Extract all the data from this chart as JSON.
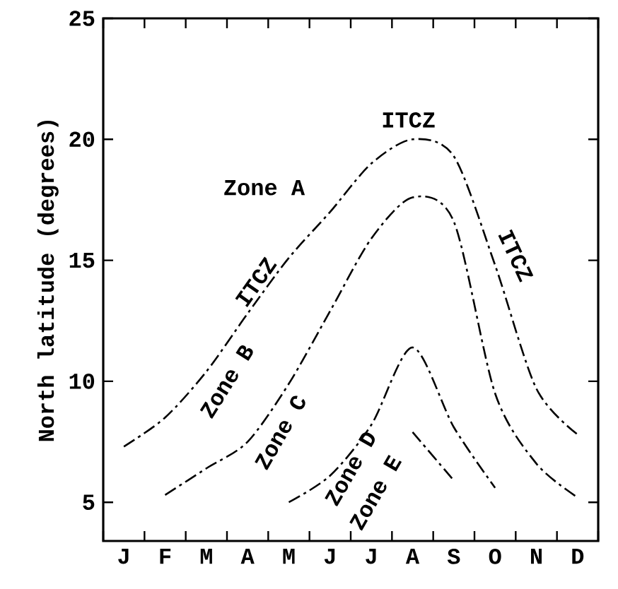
{
  "chart_data": {
    "type": "line",
    "ylabel": "North latitude (degrees)",
    "categories": [
      "J",
      "F",
      "M",
      "A",
      "M",
      "J",
      "J",
      "A",
      "S",
      "O",
      "N",
      "D"
    ],
    "ylim": [
      3.4,
      25
    ],
    "yticks": [
      5,
      10,
      15,
      20,
      25
    ],
    "grid": false,
    "marker": "none",
    "line_style": "dashed",
    "series": [
      {
        "color": "#000000",
        "values": [
          7.3,
          8.5,
          10.4,
          12.8,
          15.1,
          17.0,
          19.0,
          20.0,
          19.3,
          14.8,
          9.7,
          7.8
        ]
      },
      {
        "color": "#000000",
        "values": [
          null,
          5.3,
          6.4,
          7.5,
          9.9,
          12.9,
          15.9,
          17.6,
          16.6,
          9.5,
          6.6,
          5.2
        ]
      },
      {
        "color": "#000000",
        "values": [
          null,
          null,
          null,
          null,
          5.0,
          6.1,
          8.2,
          11.4,
          8.1,
          5.6,
          null,
          null
        ]
      },
      {
        "color": "#000000",
        "values": [
          null,
          null,
          null,
          null,
          null,
          null,
          null,
          7.9,
          5.9,
          null,
          null,
          null
        ]
      }
    ],
    "annotations": [
      "ITCZ",
      "Zone A",
      "ITCZ",
      "Zone B",
      "Zone C",
      "Zone D",
      "Zone E",
      "ITCZ"
    ]
  }
}
